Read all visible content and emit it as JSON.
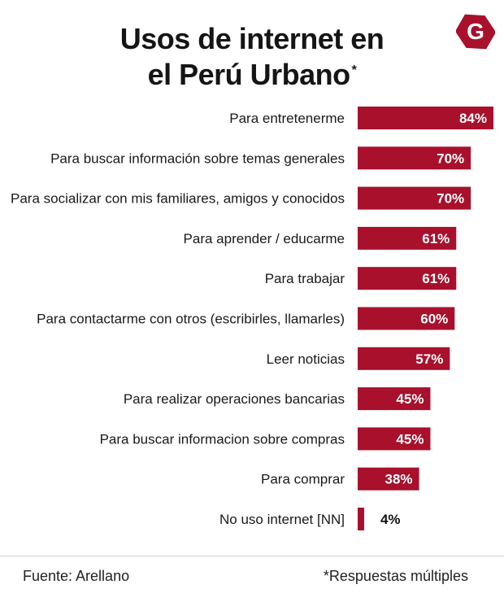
{
  "header": {
    "title_line1": "Usos de internet en",
    "title_line2": "el Perú Urbano",
    "title_mark": "*",
    "logo_letter": "G",
    "logo_icon": "g-logo-icon"
  },
  "colors": {
    "bar": "#A8102C",
    "label_inside": "#ffffff",
    "label_outside": "#111111",
    "category_text": "#1a1a1a"
  },
  "chart_data": {
    "type": "bar",
    "orientation": "horizontal",
    "categories": [
      "Para entretenerme",
      "Para buscar información sobre temas generales",
      "Para socializar con mis familiares, amigos y conocidos",
      "Para aprender / educarme",
      "Para trabajar",
      "Para contactarme con otros (escribirles, llamarles)",
      "Leer noticias",
      "Para realizar operaciones bancarias",
      "Para buscar informacion sobre compras",
      "Para comprar",
      "No uso internet [NN]"
    ],
    "values": [
      84,
      70,
      70,
      61,
      61,
      60,
      57,
      45,
      45,
      38,
      4
    ],
    "value_labels": [
      "84%",
      "70%",
      "70%",
      "61%",
      "61%",
      "60%",
      "57%",
      "45%",
      "45%",
      "38%",
      "4%"
    ],
    "unit": "%",
    "xlim": [
      0,
      84
    ],
    "grid": false,
    "legend": "none"
  },
  "footer": {
    "source": "Fuente: Arellano",
    "note": "*Respuestas múltiples"
  }
}
